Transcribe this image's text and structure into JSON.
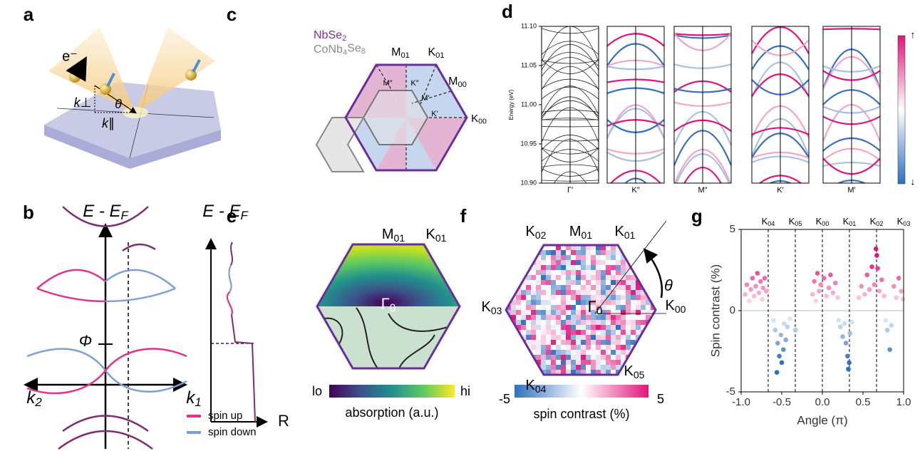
{
  "panel_labels": [
    "a",
    "b",
    "c",
    "d",
    "e",
    "f",
    "g"
  ],
  "panel_a": {
    "electron": "e⁻",
    "k_perp": "k⊥",
    "theta": "θ",
    "k_par": "k∥"
  },
  "panel_b": {
    "left_axis": [
      "E - E",
      "F"
    ],
    "right_axis": [
      "E - E",
      "F"
    ],
    "k2": [
      "k",
      "2"
    ],
    "k1": [
      "k",
      "1"
    ],
    "phi": "Φ",
    "r_axis": "R",
    "legend": [
      {
        "name": "spin up",
        "color": "#e0338a"
      },
      {
        "name": "spin down",
        "color": "#7f9fd6"
      }
    ]
  },
  "panel_c": {
    "legend": [
      {
        "text": [
          "NbSe",
          "2"
        ],
        "color": "#7b2e9e"
      },
      {
        "text": [
          "CoNb",
          "4",
          "Se",
          "8"
        ],
        "color": "#8a8a8a"
      }
    ],
    "points": {
      "m01": [
        "M",
        "01"
      ],
      "k01": [
        "K",
        "01"
      ],
      "m00": [
        "M",
        "00"
      ],
      "k00": [
        "K",
        "00"
      ],
      "m2": "M″",
      "k2": "K″",
      "m1": "M′",
      "k1": "K′"
    }
  },
  "panel_d": {
    "ylabel": "Energy (eV)",
    "ylim": [
      10.9,
      11.1
    ],
    "yticks": [
      {
        "value": 10.9,
        "label": "10.90"
      },
      {
        "value": 10.95,
        "label": "10.95"
      },
      {
        "value": 11.0,
        "label": "11.00"
      },
      {
        "value": 11.05,
        "label": "11.05"
      },
      {
        "value": 11.1,
        "label": "11.10"
      }
    ],
    "xlabels": [
      "Γ′",
      "K″",
      "M″",
      "K′",
      "M′"
    ],
    "colorbar": [
      "↑",
      "↓"
    ]
  },
  "panel_e": {
    "m01": [
      "M",
      "01"
    ],
    "k01": [
      "K",
      "01"
    ],
    "gamma": [
      "Γ",
      "0"
    ],
    "lo": "lo",
    "hi": "hi",
    "colorbar_label": "absorption (a.u.)"
  },
  "panel_f": {
    "k02": [
      "K",
      "02"
    ],
    "m01": [
      "M",
      "01"
    ],
    "k01": [
      "K",
      "01"
    ],
    "k03": [
      "K",
      "03"
    ],
    "k00": [
      "K",
      "00"
    ],
    "k04": [
      "K",
      "04"
    ],
    "k05": [
      "K",
      "05"
    ],
    "gamma": [
      "Γ",
      "0"
    ],
    "theta": "θ",
    "colorbar_ticks": [
      -5,
      5
    ],
    "colorbar_label": "spin contrast (%)"
  },
  "chart_data": {
    "type": "scatter",
    "xlabel": "Angle (π)",
    "ylabel": "Spin contrast (%)",
    "xlim": [
      -1,
      1
    ],
    "ylim": [
      -5,
      5
    ],
    "xticks": [
      {
        "value": -1,
        "label": "-1.0"
      },
      {
        "value": -0.5,
        "label": "-0.5"
      },
      {
        "value": 0,
        "label": "0.0"
      },
      {
        "value": 0.5,
        "label": "0.5"
      },
      {
        "value": 1,
        "label": "1.0"
      }
    ],
    "yticks": [
      -5,
      0,
      5
    ],
    "zero_line": true,
    "colormap": [
      "#2f6fbf",
      "#ffffff",
      "#e0157a"
    ],
    "clim": [
      -5,
      5
    ],
    "vlines": [
      {
        "value": -0.667,
        "label": [
          "K",
          "04"
        ]
      },
      {
        "value": -0.333,
        "label": [
          "K",
          "05"
        ]
      },
      {
        "value": 0,
        "label": [
          "K",
          "00"
        ]
      },
      {
        "value": 0.333,
        "label": [
          "K",
          "01"
        ]
      },
      {
        "value": 0.667,
        "label": [
          "K",
          "02"
        ]
      },
      {
        "value": 1,
        "label": [
          "K",
          "03"
        ]
      }
    ],
    "x": [
      -0.95,
      -0.93,
      -0.9,
      -0.88,
      -0.86,
      -0.84,
      -0.82,
      -0.8,
      -0.78,
      -0.76,
      -0.74,
      -0.73,
      -0.71,
      -0.69,
      -0.6,
      -0.58,
      -0.56,
      -0.55,
      -0.53,
      -0.51,
      -0.5,
      -0.48,
      -0.47,
      -0.45,
      -0.43,
      -0.4,
      -0.33,
      -0.12,
      -0.1,
      -0.08,
      -0.06,
      -0.04,
      -0.02,
      0.02,
      0.05,
      0.08,
      0.1,
      0.13,
      0.16,
      0.19,
      0.2,
      0.22,
      0.25,
      0.27,
      0.29,
      0.31,
      0.32,
      0.33,
      0.34,
      0.36,
      0.45,
      0.48,
      0.52,
      0.55,
      0.58,
      0.61,
      0.64,
      0.66,
      0.67,
      0.68,
      0.7,
      0.73,
      0.76,
      0.78,
      0.8,
      0.83,
      0.85,
      0.88,
      0.91,
      0.94,
      0.97,
      0.99
    ],
    "values": [
      1.0,
      1.6,
      0.6,
      1.3,
      2.0,
      0.9,
      1.5,
      2.3,
      1.1,
      1.8,
      0.7,
      1.4,
      2.0,
      1.2,
      -0.6,
      -1.2,
      -3.8,
      -2.0,
      -2.8,
      -1.5,
      -3.2,
      -2.4,
      -0.8,
      -1.8,
      -1.0,
      -0.5,
      -1.2,
      1.0,
      1.8,
      0.6,
      2.3,
      1.2,
      1.6,
      2.0,
      0.9,
      1.4,
      2.2,
      1.1,
      1.7,
      0.8,
      -0.6,
      -1.0,
      -1.6,
      -0.8,
      -2.0,
      -2.8,
      -3.6,
      -3.2,
      -1.4,
      -0.7,
      0.8,
      1.5,
      1.0,
      2.2,
      1.3,
      2.7,
      1.6,
      3.8,
      3.4,
      2.6,
      1.2,
      1.9,
      0.9,
      -0.6,
      -1.2,
      -2.4,
      -0.9,
      1.5,
      0.8,
      2.0,
      1.2,
      0.7
    ]
  }
}
